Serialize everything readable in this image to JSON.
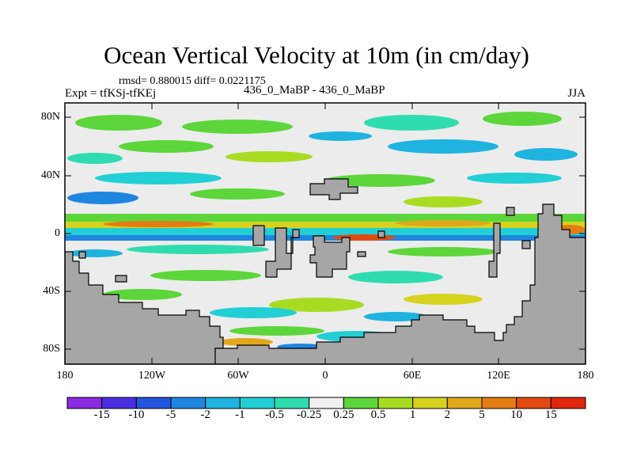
{
  "title": "Ocean Vertical Velocity at 10m (in cm/day)",
  "subtitle_left_top": "rmsd= 0.880015 diff= 0.0221175",
  "subtitle_left": "Expt = tfKSj-tfKEj",
  "subtitle_center": "436_0_MaBP - 436_0_MaBP",
  "subtitle_right": "JJA",
  "y_ticks": [
    "80N",
    "40N",
    "0",
    "40S",
    "80S"
  ],
  "x_ticks": [
    "180",
    "120W",
    "60W",
    "0",
    "60E",
    "120E",
    "180"
  ],
  "colorbar": {
    "labels": [
      "-15",
      "-10",
      "-5",
      "-2",
      "-1",
      "-0.5",
      "-0.25",
      "0.25",
      "0.5",
      "1",
      "2",
      "5",
      "10",
      "15"
    ],
    "colors": [
      "#8a2be2",
      "#4b2ee0",
      "#2255dd",
      "#1f86e0",
      "#1fb3e0",
      "#22cfd5",
      "#2fdcb0",
      "#f0f0f0",
      "#5cd63a",
      "#a8dc22",
      "#d6d21e",
      "#e0a81a",
      "#e37c12",
      "#e24a10",
      "#e0260c"
    ]
  },
  "colors": {
    "land": "#a6a6a6",
    "ocean_neutral": "#ececec"
  }
}
